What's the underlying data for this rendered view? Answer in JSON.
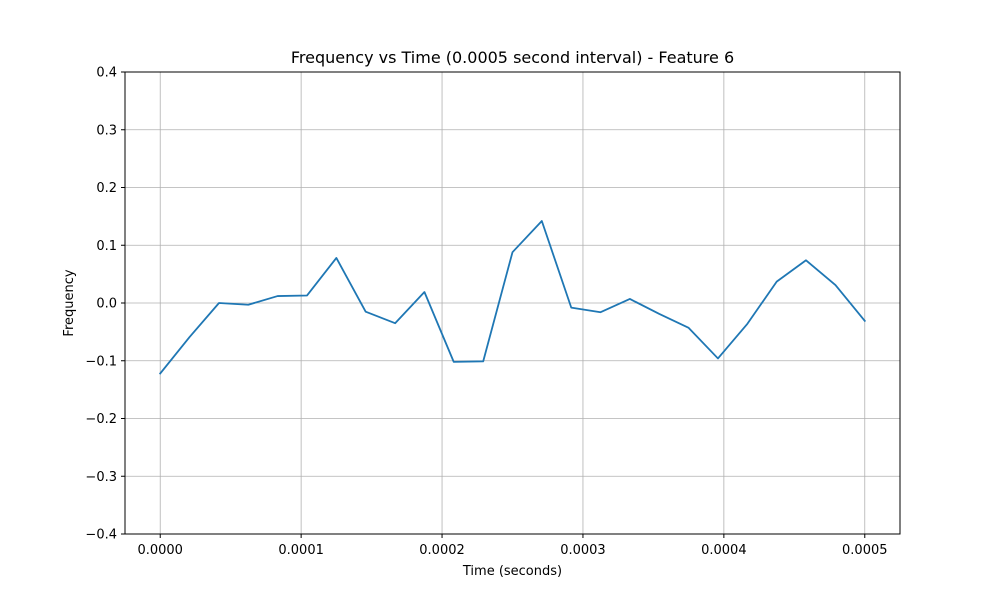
{
  "chart_data": {
    "type": "line",
    "title": "Frequency vs Time (0.0005 second interval) - Feature 6",
    "xlabel": "Time (seconds)",
    "ylabel": "Frequency",
    "xlim": [
      -2.5e-05,
      0.000525
    ],
    "ylim": [
      -0.4,
      0.4
    ],
    "x_ticks": [
      0.0,
      0.0001,
      0.0002,
      0.0003,
      0.0004,
      0.0005
    ],
    "x_tick_labels": [
      "0.0000",
      "0.0001",
      "0.0002",
      "0.0003",
      "0.0004",
      "0.0005"
    ],
    "y_ticks": [
      -0.4,
      -0.3,
      -0.2,
      -0.1,
      0.0,
      0.1,
      0.2,
      0.3,
      0.4
    ],
    "y_tick_labels": [
      "−0.4",
      "−0.3",
      "−0.2",
      "−0.1",
      "0.0",
      "0.1",
      "0.2",
      "0.3",
      "0.4"
    ],
    "grid": true,
    "series": [
      {
        "color": "#1f77b4",
        "x": [
          0.0,
          2.08e-05,
          4.17e-05,
          6.25e-05,
          8.33e-05,
          0.0001042,
          0.000125,
          0.0001458,
          0.0001667,
          0.0001875,
          0.0002083,
          0.0002292,
          0.00025,
          0.0002708,
          0.0002917,
          0.0003125,
          0.0003333,
          0.0003542,
          0.000375,
          0.0003958,
          0.0004167,
          0.0004375,
          0.0004583,
          0.0004792,
          0.0005
        ],
        "y": [
          -0.122,
          -0.059,
          0.0,
          -0.003,
          0.012,
          0.013,
          0.078,
          -0.015,
          -0.035,
          0.019,
          -0.102,
          -0.101,
          0.088,
          0.142,
          -0.008,
          -0.016,
          0.007,
          -0.019,
          -0.043,
          -0.096,
          -0.036,
          0.037,
          0.074,
          0.031,
          -0.031
        ]
      }
    ]
  }
}
